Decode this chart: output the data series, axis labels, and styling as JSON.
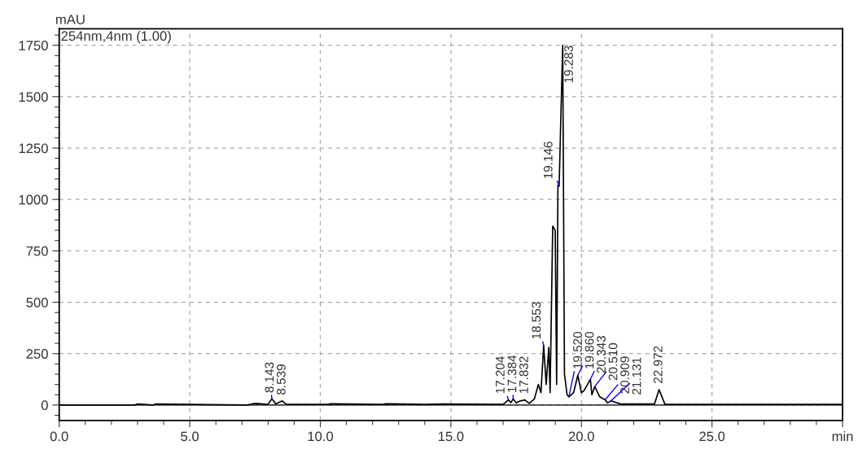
{
  "chart_data": {
    "type": "line",
    "ylabel": "mAU",
    "annotations": [
      "254nm,4nm (1.00)",
      {
        "text": "8.143",
        "x": 8.143,
        "y": 30
      },
      {
        "text": "8.539",
        "x": 8.539,
        "y": 20
      },
      {
        "text": "17.204",
        "x": 17.204,
        "y": 25
      },
      {
        "text": "17.384",
        "x": 17.384,
        "y": 30
      },
      {
        "text": "17.832",
        "x": 17.832,
        "y": 25
      },
      {
        "text": "18.553",
        "x": 18.553,
        "y": 290
      },
      {
        "text": "19.146",
        "x": 19.146,
        "y": 1065
      },
      {
        "text": "19.283",
        "x": 19.283,
        "y": 1750
      },
      {
        "text": "19.520",
        "x": 19.52,
        "y": 40
      },
      {
        "text": "19.860",
        "x": 19.86,
        "y": 145
      },
      {
        "text": "20.343",
        "x": 20.343,
        "y": 125
      },
      {
        "text": "20.510",
        "x": 20.51,
        "y": 90
      },
      {
        "text": "20.909",
        "x": 20.909,
        "y": 25
      },
      {
        "text": "21.131",
        "x": 21.131,
        "y": 20
      },
      {
        "text": "22.972",
        "x": 22.972,
        "y": 75
      }
    ],
    "series": [
      {
        "color": "#000000",
        "x": [
          0,
          2.9,
          3.0,
          3.6,
          3.7,
          7.2,
          7.5,
          7.8,
          8.0,
          8.143,
          8.3,
          8.539,
          8.7,
          10.3,
          10.4,
          12.4,
          12.5,
          14.0,
          14.7,
          17.0,
          17.204,
          17.3,
          17.384,
          17.5,
          17.657,
          17.832,
          18.0,
          18.2,
          18.35,
          18.45,
          18.553,
          18.65,
          18.75,
          18.8,
          18.9,
          18.995,
          19.05,
          19.1,
          19.146,
          19.2,
          19.283,
          19.35,
          19.45,
          19.52,
          19.7,
          19.86,
          20.0,
          20.1,
          20.343,
          20.4,
          20.51,
          20.7,
          20.909,
          21.0,
          21.131,
          21.5,
          22.8,
          22.972,
          23.2,
          30
        ],
        "values": [
          0,
          0,
          5,
          0,
          5,
          0,
          8,
          5,
          3,
          30,
          5,
          20,
          3,
          3,
          6,
          3,
          6,
          3,
          5,
          3,
          25,
          12,
          30,
          10,
          20,
          25,
          8,
          30,
          100,
          60,
          290,
          100,
          280,
          60,
          870,
          850,
          100,
          1070,
          1065,
          1340,
          1750,
          150,
          50,
          40,
          60,
          145,
          60,
          70,
          125,
          50,
          90,
          40,
          25,
          10,
          20,
          5,
          5,
          75,
          3,
          3
        ]
      }
    ],
    "xlim": [
      0,
      30
    ],
    "xticks": [
      {
        "value": 0,
        "label": "0.0"
      },
      {
        "value": 5,
        "label": "5.0"
      },
      {
        "value": 10,
        "label": "10.0"
      },
      {
        "value": 15,
        "label": "15.0"
      },
      {
        "value": 20,
        "label": "20.0"
      },
      {
        "value": 25,
        "label": "25.0"
      },
      {
        "value": 30,
        "label": "min"
      }
    ],
    "ylim": [
      -75,
      1830
    ],
    "yticks": [
      0,
      250,
      500,
      750,
      1000,
      1250,
      1500,
      1750
    ],
    "grid": true,
    "marker": "none",
    "line_style": "solid"
  }
}
